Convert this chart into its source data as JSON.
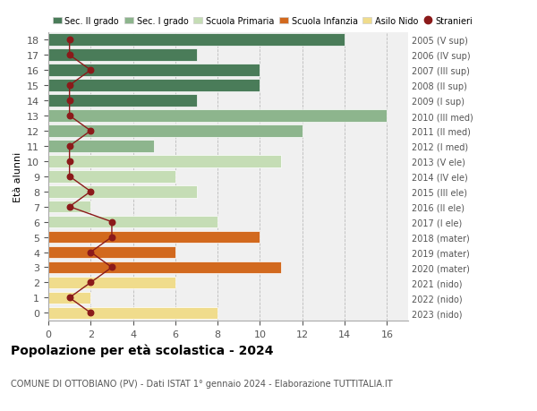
{
  "ages": [
    18,
    17,
    16,
    15,
    14,
    13,
    12,
    11,
    10,
    9,
    8,
    7,
    6,
    5,
    4,
    3,
    2,
    1,
    0
  ],
  "right_labels": [
    "2005 (V sup)",
    "2006 (IV sup)",
    "2007 (III sup)",
    "2008 (II sup)",
    "2009 (I sup)",
    "2010 (III med)",
    "2011 (II med)",
    "2012 (I med)",
    "2013 (V ele)",
    "2014 (IV ele)",
    "2015 (III ele)",
    "2016 (II ele)",
    "2017 (I ele)",
    "2018 (mater)",
    "2019 (mater)",
    "2020 (mater)",
    "2021 (nido)",
    "2022 (nido)",
    "2023 (nido)"
  ],
  "bar_values": [
    14,
    7,
    10,
    10,
    7,
    16,
    12,
    5,
    11,
    6,
    7,
    2,
    8,
    10,
    6,
    11,
    6,
    2,
    8
  ],
  "bar_colors": [
    "#4a7c59",
    "#4a7c59",
    "#4a7c59",
    "#4a7c59",
    "#4a7c59",
    "#8db58d",
    "#8db58d",
    "#8db58d",
    "#c5ddb5",
    "#c5ddb5",
    "#c5ddb5",
    "#c5ddb5",
    "#c5ddb5",
    "#d2691e",
    "#d2691e",
    "#d2691e",
    "#f0dc8c",
    "#f0dc8c",
    "#f0dc8c"
  ],
  "stranieri_values": [
    1,
    1,
    2,
    1,
    1,
    1,
    2,
    1,
    1,
    1,
    2,
    1,
    3,
    3,
    2,
    3,
    2,
    1,
    2
  ],
  "stranieri_color": "#8b1a1a",
  "legend_labels": [
    "Sec. II grado",
    "Sec. I grado",
    "Scuola Primaria",
    "Scuola Infanzia",
    "Asilo Nido",
    "Stranieri"
  ],
  "legend_colors": [
    "#4a7c59",
    "#8db58d",
    "#c5ddb5",
    "#d2691e",
    "#f0dc8c",
    "#8b1a1a"
  ],
  "xlim": [
    0,
    17
  ],
  "xticks": [
    0,
    2,
    4,
    6,
    8,
    10,
    12,
    14,
    16
  ],
  "ylabel_left": "Età alunni",
  "title_bold": "Popolazione per età scolastica - 2024",
  "subtitle": "COMUNE DI OTTOBIANO (PV) - Dati ISTAT 1° gennaio 2024 - Elaborazione TUTTITALIA.IT",
  "bg_color": "#ffffff",
  "plot_bg_color": "#f0f0f0"
}
